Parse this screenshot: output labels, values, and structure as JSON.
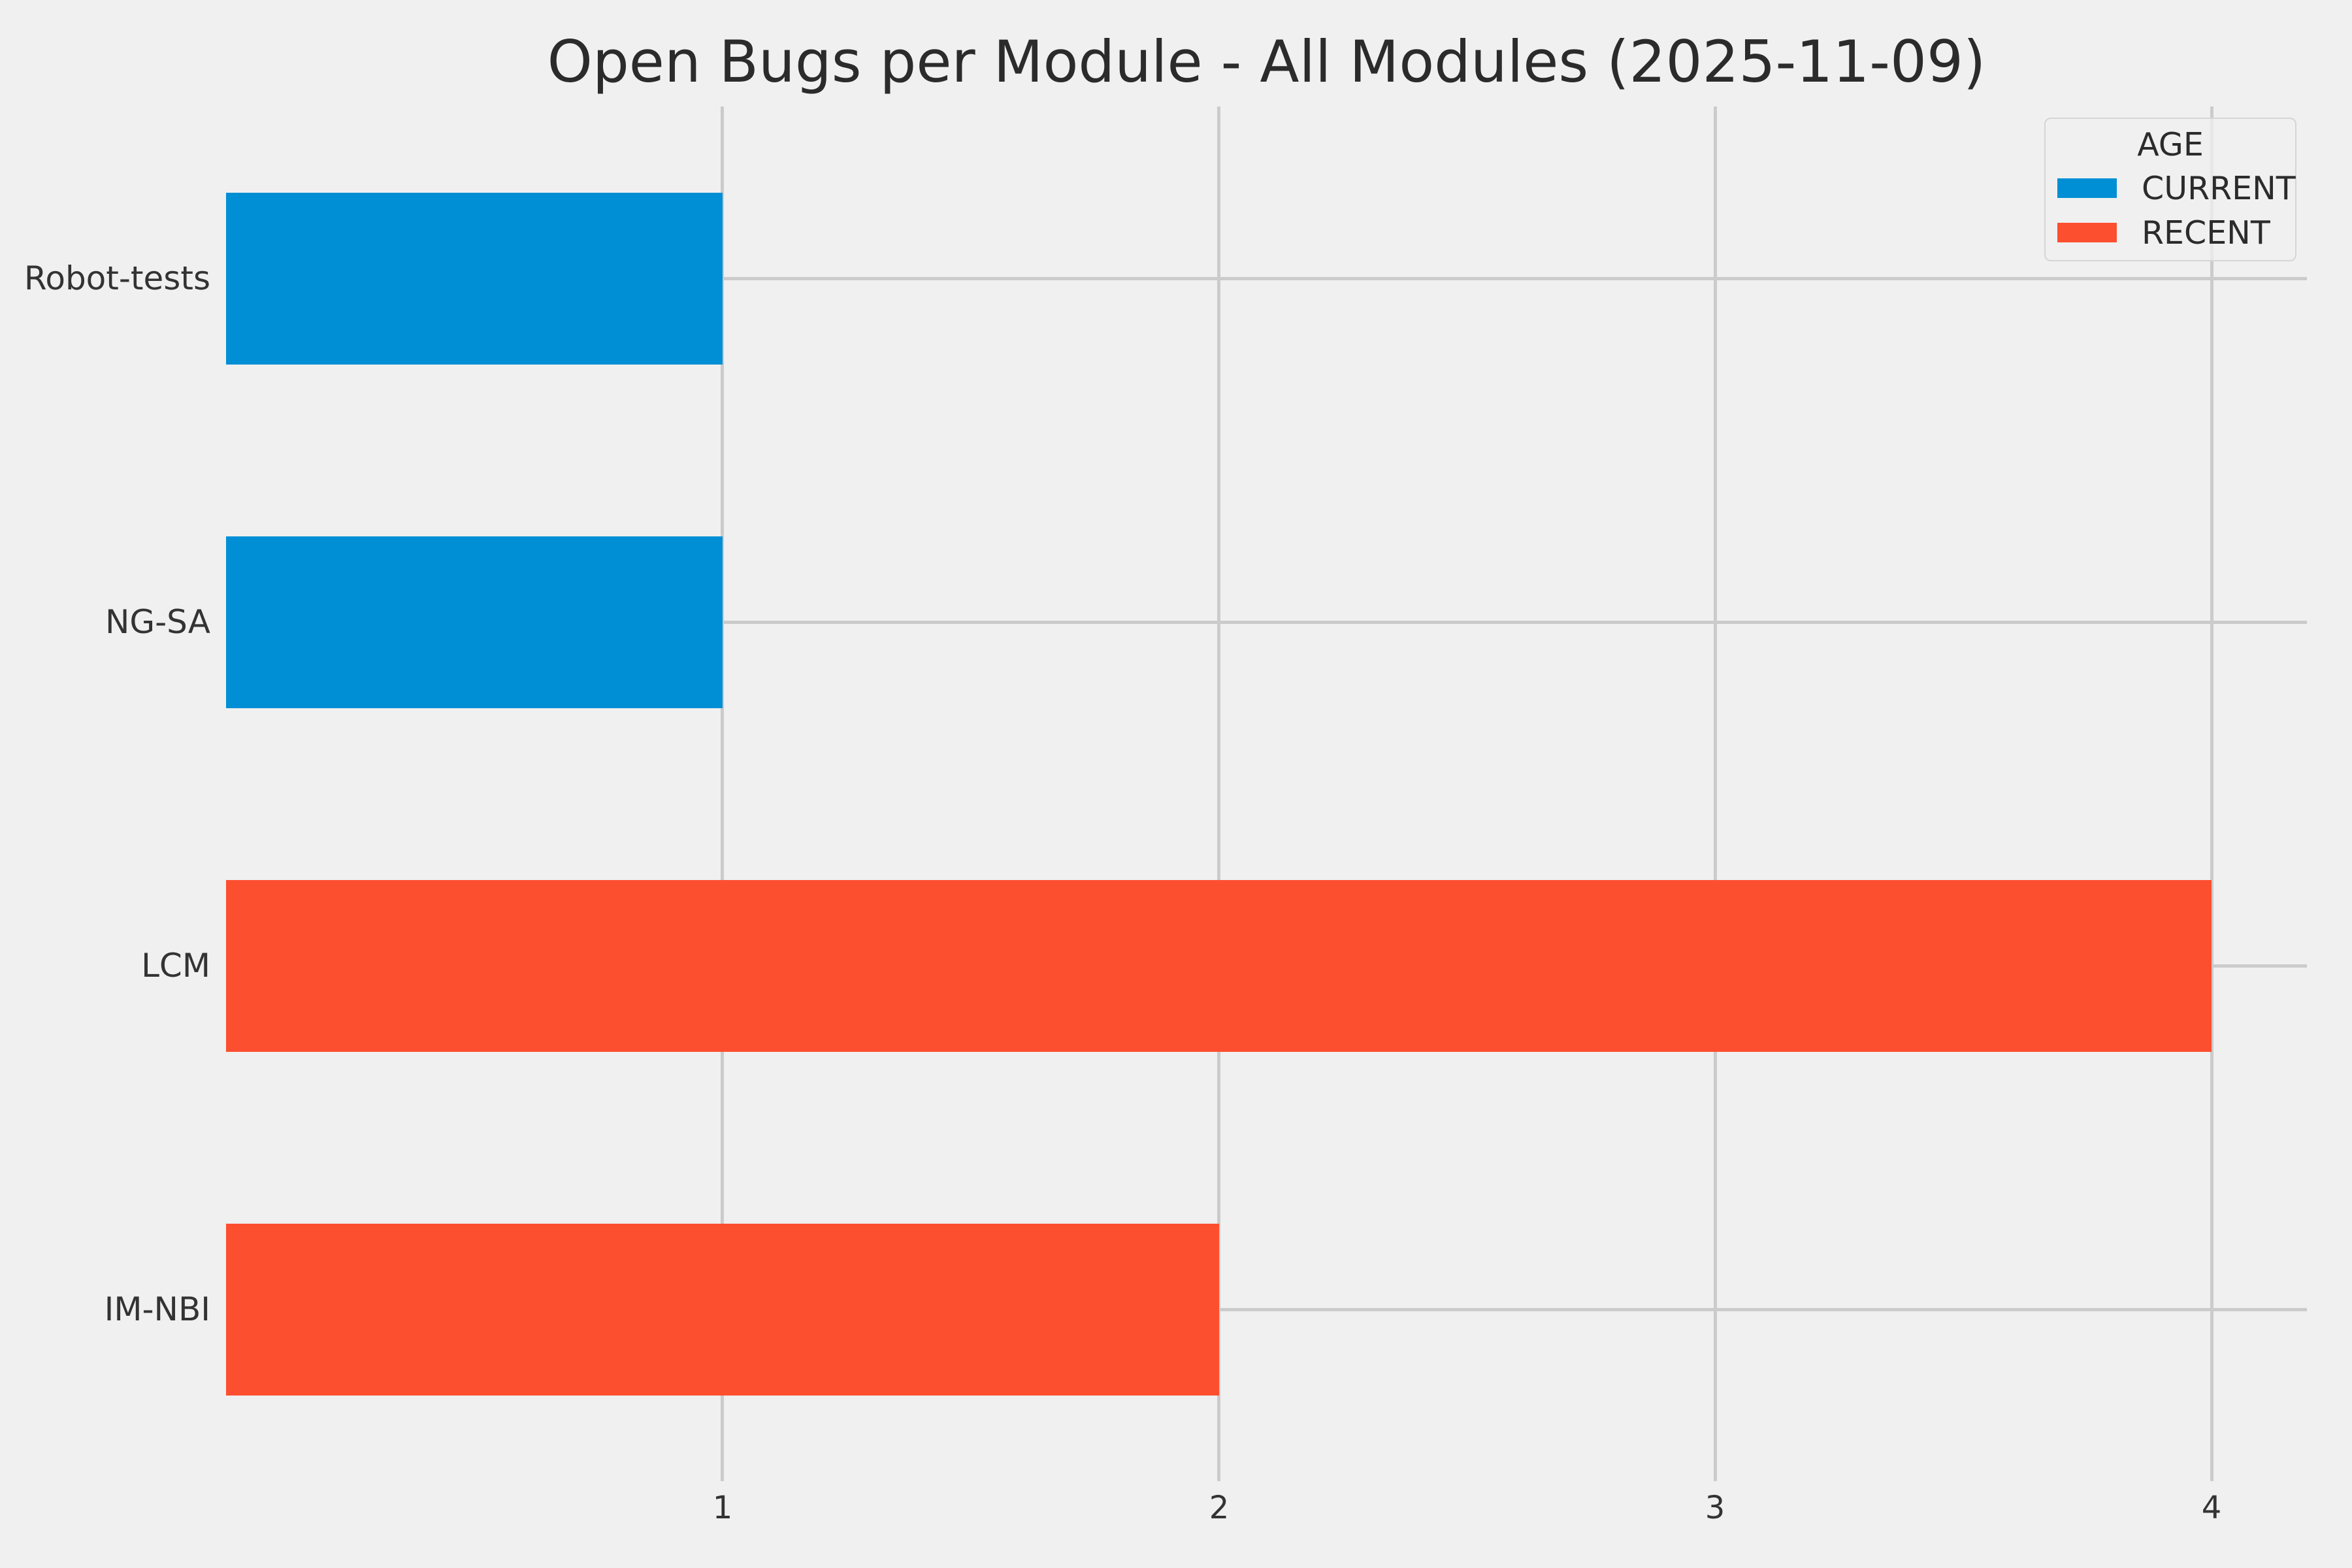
{
  "title": "Open Bugs per Module - All Modules (2025-11-09)",
  "colors": {
    "background": "#f0f0f0",
    "grid": "#cbcbcb",
    "tick_text": "#333333",
    "title_text": "#2b2b2b",
    "current": "#008fd5",
    "recent": "#fc4f30",
    "legend_border": "#d5d5d5"
  },
  "legend": {
    "title": "AGE",
    "entries": [
      {
        "label": "CURRENT",
        "color": "#008fd5"
      },
      {
        "label": "RECENT",
        "color": "#fc4f30"
      }
    ]
  },
  "chart_data": {
    "type": "bar",
    "orientation": "horizontal",
    "title": "Open Bugs per Module - All Modules (2025-11-09)",
    "categories": [
      "Robot-tests",
      "NG-SA",
      "LCM",
      "IM-NBI"
    ],
    "values": [
      1,
      1,
      4,
      2
    ],
    "bar_groups": [
      "CURRENT",
      "CURRENT",
      "RECENT",
      "RECENT"
    ],
    "bar_colors": [
      "#008fd5",
      "#008fd5",
      "#fc4f30",
      "#fc4f30"
    ],
    "series": [
      {
        "name": "CURRENT",
        "color": "#008fd5",
        "values": [
          1,
          1,
          0,
          0
        ]
      },
      {
        "name": "RECENT",
        "color": "#fc4f30",
        "values": [
          0,
          0,
          4,
          2
        ]
      }
    ],
    "xticks": [
      1,
      2,
      3,
      4
    ],
    "xlim": [
      0,
      4.19
    ],
    "xlabel": "",
    "ylabel": "",
    "grid": true,
    "gridline_orientation": "both",
    "bar_fraction_of_row": 0.5,
    "legend_title": "AGE",
    "legend_position": "upper right"
  }
}
